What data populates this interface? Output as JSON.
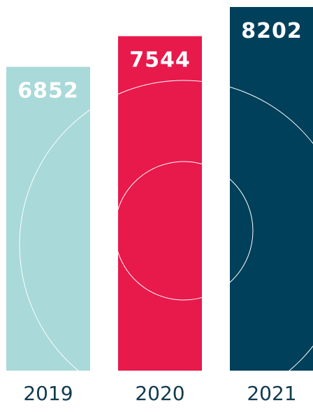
{
  "chart_data": {
    "type": "bar",
    "categories": [
      "2019",
      "2020",
      "2021"
    ],
    "values": [
      6852,
      7544,
      8202
    ],
    "colors": [
      "#a9d9d9",
      "#e8194b",
      "#00405a"
    ]
  }
}
